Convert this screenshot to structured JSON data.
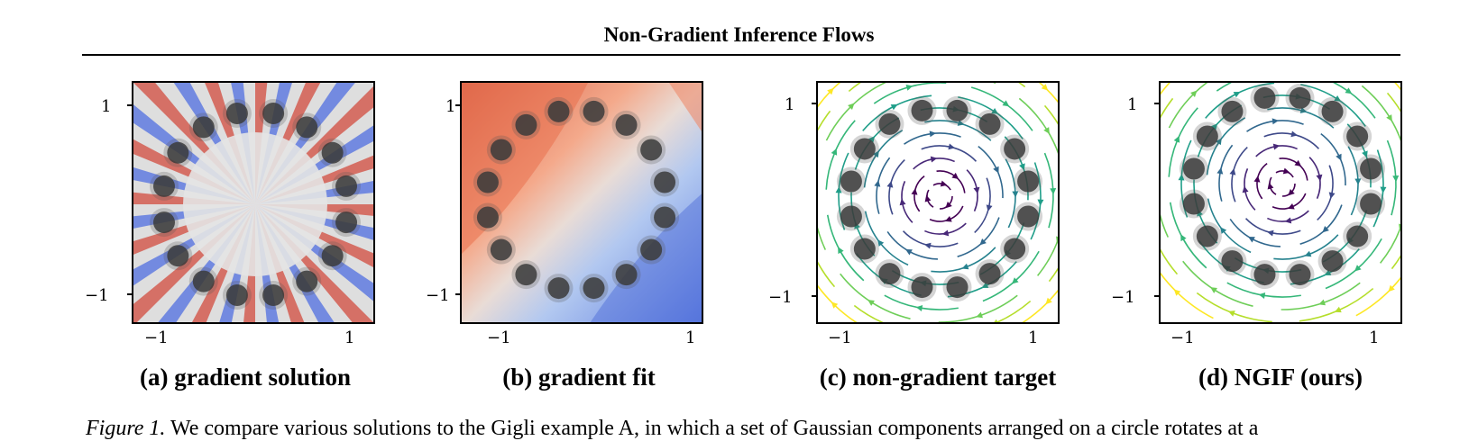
{
  "header": {
    "title": "Non-Gradient Inference Flows"
  },
  "panels": [
    {
      "caption": "(a) gradient solution",
      "field": "radial-diverging-stripes"
    },
    {
      "caption": "(b) gradient fit",
      "field": "diagonal-red-blue-gradient"
    },
    {
      "caption": "(c) non-gradient target",
      "field": "rotational-streamlines"
    },
    {
      "caption": "(d) NGIF (ours)",
      "field": "rotational-streamlines"
    }
  ],
  "axes": {
    "x_ticks": [
      "−1",
      "1"
    ],
    "y_ticks": [
      "1",
      "−1"
    ]
  },
  "colors": {
    "red": "#b40426",
    "blue": "#3b4cc0",
    "viridis_dark": "#440154",
    "viridis_light": "#fde725"
  },
  "figure_caption": {
    "label": "Figure 1.",
    "text": " We compare various solutions to the Gigli example A, in which a set of Gaussian components arranged on a circle rotates at a"
  }
}
